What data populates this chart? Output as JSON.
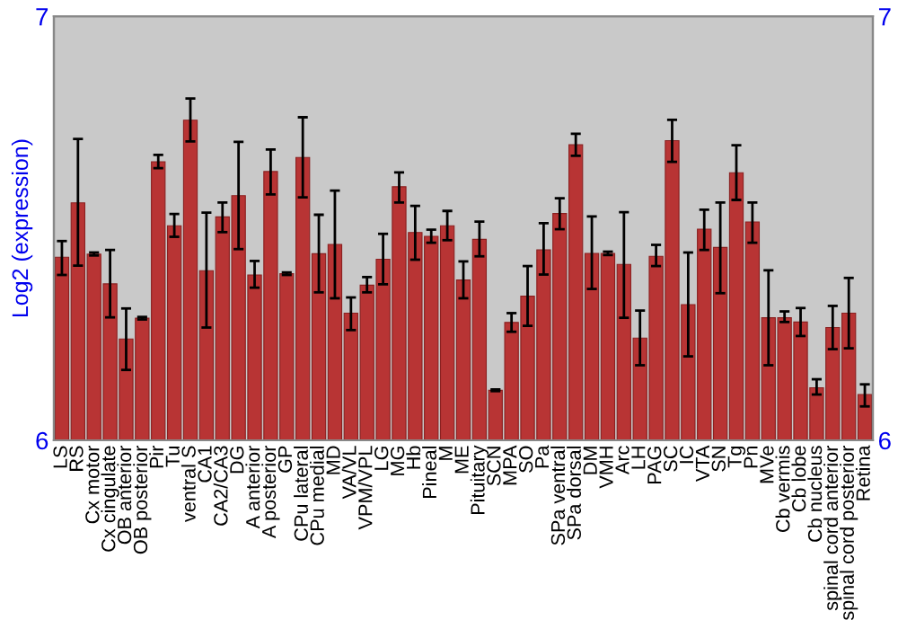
{
  "chart_data": {
    "type": "bar",
    "ylabel": "Log2 (expression)",
    "categories": [
      "LS",
      "RS",
      "Cx motor",
      "Cx cingulate",
      "OB anterior",
      "OB posterior",
      "Pir",
      "Tu",
      "ventral S",
      "CA1",
      "CA2/CA3",
      "DG",
      "A anterior",
      "A posterior",
      "GP",
      "CPu lateral",
      "CPu medial",
      "MD",
      "VA/VL",
      "VPM/VPL",
      "LG",
      "MG",
      "Hb",
      "Pineal",
      "M",
      "ME",
      "Pituitary",
      "SCN",
      "MPA",
      "SO",
      "Pa",
      "SPa ventral",
      "SPa dorsal",
      "DM",
      "VMH",
      "Arc",
      "LH",
      "PAG",
      "SC",
      "IC",
      "VTA",
      "SN",
      "Tg",
      "Pn",
      "MVe",
      "Cb vermis",
      "Cb lobe",
      "Cb nucleus",
      "spinal cord anterior",
      "spinal cord posterior",
      "Retina"
    ],
    "values": [
      6.432,
      6.56,
      6.439,
      6.369,
      6.239,
      6.288,
      6.657,
      6.506,
      6.755,
      6.4,
      6.527,
      6.577,
      6.39,
      6.634,
      6.393,
      6.667,
      6.44,
      6.462,
      6.3,
      6.366,
      6.427,
      6.598,
      6.49,
      6.481,
      6.506,
      6.378,
      6.474,
      6.118,
      6.278,
      6.34,
      6.449,
      6.535,
      6.697,
      6.441,
      6.441,
      6.415,
      6.241,
      6.434,
      6.707,
      6.32,
      6.498,
      6.455,
      6.631,
      6.515,
      6.289,
      6.289,
      6.279,
      6.124,
      6.266,
      6.3,
      6.108
    ],
    "errors": [
      [
        6.39,
        6.47
      ],
      [
        6.412,
        6.711
      ],
      [
        6.436,
        6.443
      ],
      [
        6.29,
        6.449
      ],
      [
        6.166,
        6.311
      ],
      [
        6.285,
        6.291
      ],
      [
        6.642,
        6.673
      ],
      [
        6.48,
        6.534
      ],
      [
        6.705,
        6.806
      ],
      [
        6.266,
        6.537
      ],
      [
        6.491,
        6.561
      ],
      [
        6.451,
        6.704
      ],
      [
        6.36,
        6.423
      ],
      [
        6.58,
        6.686
      ],
      [
        6.39,
        6.396
      ],
      [
        6.573,
        6.762
      ],
      [
        6.349,
        6.532
      ],
      [
        6.335,
        6.589
      ],
      [
        6.26,
        6.337
      ],
      [
        6.349,
        6.385
      ],
      [
        6.368,
        6.487
      ],
      [
        6.561,
        6.632
      ],
      [
        6.426,
        6.553
      ],
      [
        6.466,
        6.497
      ],
      [
        6.472,
        6.541
      ],
      [
        6.335,
        6.422
      ],
      [
        6.434,
        6.516
      ],
      [
        6.116,
        6.12
      ],
      [
        6.256,
        6.3
      ],
      [
        6.27,
        6.411
      ],
      [
        6.391,
        6.512
      ],
      [
        6.498,
        6.571
      ],
      [
        6.671,
        6.723
      ],
      [
        6.357,
        6.528
      ],
      [
        6.437,
        6.445
      ],
      [
        6.289,
        6.538
      ],
      [
        6.177,
        6.306
      ],
      [
        6.411,
        6.461
      ],
      [
        6.657,
        6.756
      ],
      [
        6.198,
        6.443
      ],
      [
        6.449,
        6.544
      ],
      [
        6.347,
        6.561
      ],
      [
        6.567,
        6.696
      ],
      [
        6.466,
        6.561
      ],
      [
        6.177,
        6.401
      ],
      [
        6.279,
        6.304
      ],
      [
        6.246,
        6.312
      ],
      [
        6.108,
        6.144
      ],
      [
        6.215,
        6.317
      ],
      [
        6.217,
        6.383
      ],
      [
        6.08,
        6.132
      ]
    ],
    "color": "#b83434",
    "ylim": [
      6,
      7
    ],
    "yticks": [
      6,
      7
    ],
    "y2lim": [
      6,
      7
    ],
    "y2ticks": [
      6,
      7
    ],
    "grid": false,
    "legend": false
  }
}
